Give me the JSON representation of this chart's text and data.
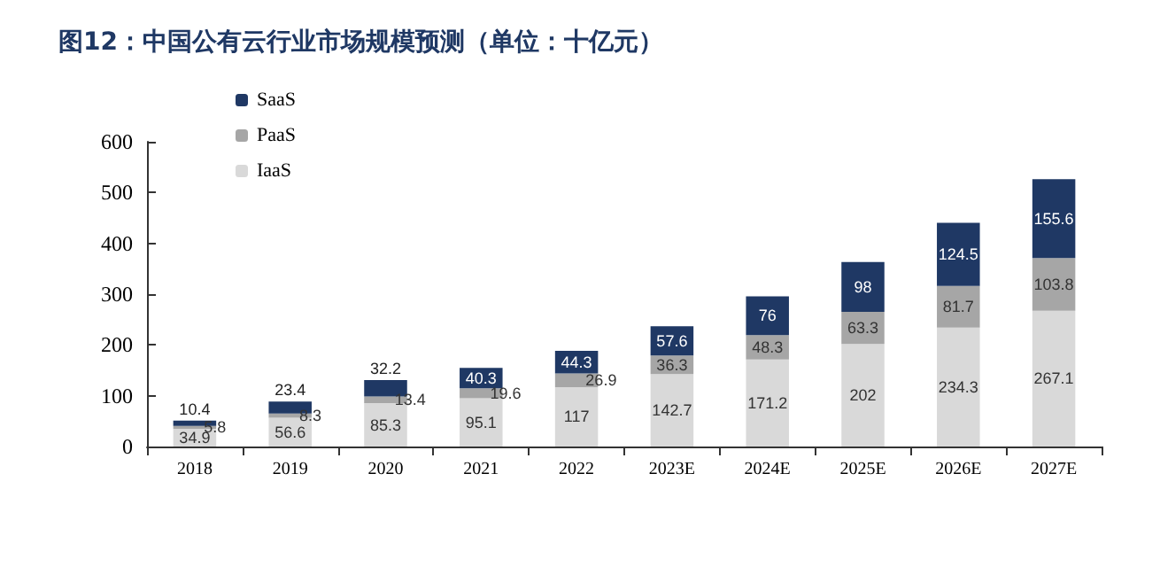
{
  "chart_data": {
    "type": "bar",
    "title": "图12：中国公有云行业市场规模预测（单位：十亿元）",
    "categories": [
      "2018",
      "2019",
      "2020",
      "2021",
      "2022",
      "2023E",
      "2024E",
      "2025E",
      "2026E",
      "2027E"
    ],
    "stacked": true,
    "series": [
      {
        "name": "IaaS",
        "color": "#d9d9d9",
        "values": [
          34.9,
          56.6,
          85.3,
          95.1,
          117,
          142.7,
          171.2,
          202,
          234.3,
          267.1
        ]
      },
      {
        "name": "PaaS",
        "color": "#a6a6a6",
        "values": [
          5.8,
          8.3,
          13.4,
          19.6,
          26.9,
          36.3,
          48.3,
          63.3,
          81.7,
          103.8
        ]
      },
      {
        "name": "SaaS",
        "color": "#1f3864",
        "values": [
          10.4,
          23.4,
          32.2,
          40.3,
          44.3,
          57.6,
          76,
          98,
          124.5,
          155.6
        ]
      }
    ],
    "ylim": [
      0,
      600
    ],
    "yticks": [
      0,
      100,
      200,
      300,
      400,
      500,
      600
    ],
    "data_labels": true,
    "grid": false,
    "legend": "top left"
  }
}
